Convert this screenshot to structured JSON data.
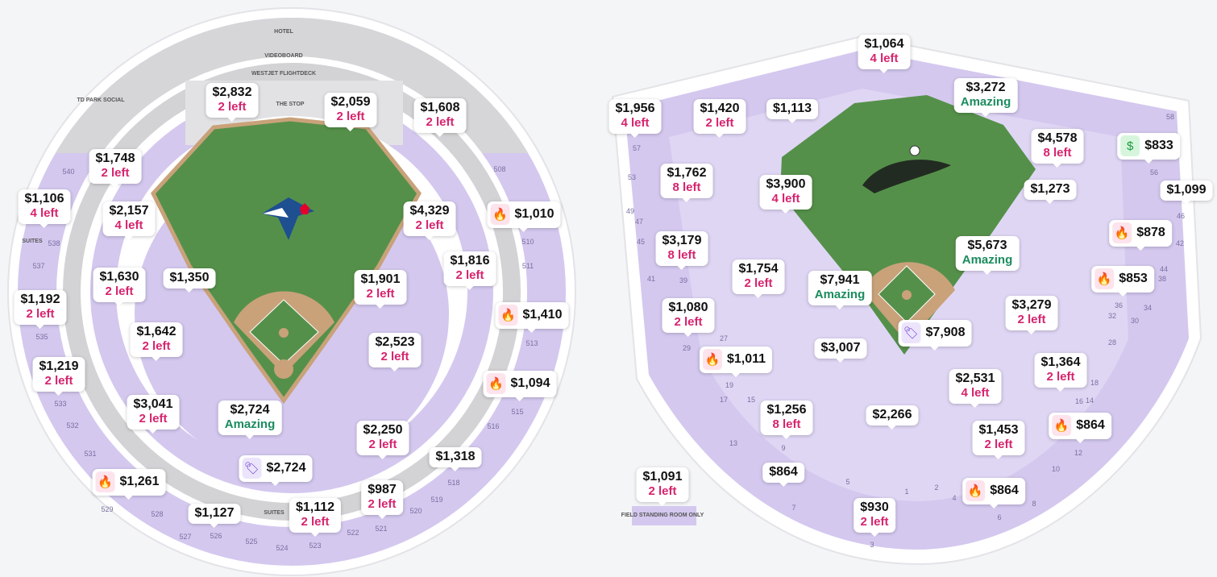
{
  "colors": {
    "section": "#d4c8ef",
    "field": "#55904a",
    "dirt": "#c9a27a",
    "left_text": "#d6246e",
    "amazing_text": "#1b8c5e"
  },
  "left_map": {
    "logo": "Toronto Blue Jays",
    "area_labels": [
      "HOTEL",
      "VIDEOBOARD",
      "WESTJET FLIGHTDECK",
      "THE STOP",
      "TD PARK SOCIAL",
      "SUITES",
      "SUITES"
    ],
    "sections": [
      "540",
      "538",
      "537",
      "535",
      "533",
      "532",
      "531",
      "529",
      "528",
      "527",
      "526",
      "525",
      "524",
      "523",
      "522",
      "521",
      "520",
      "519",
      "518",
      "516",
      "515",
      "513",
      "511",
      "510",
      "508"
    ],
    "listings": [
      {
        "price": "$2,832",
        "sub": "2 left",
        "type": "left"
      },
      {
        "price": "$2,059",
        "sub": "2 left",
        "type": "left"
      },
      {
        "price": "$1,608",
        "sub": "2 left",
        "type": "left"
      },
      {
        "price": "$1,748",
        "sub": "2 left",
        "type": "left"
      },
      {
        "price": "$1,106",
        "sub": "4 left",
        "type": "left"
      },
      {
        "price": "$2,157",
        "sub": "4 left",
        "type": "left"
      },
      {
        "price": "$4,329",
        "sub": "2 left",
        "type": "left"
      },
      {
        "price": "$1,010",
        "icon": "fire-icon"
      },
      {
        "price": "$1,630",
        "sub": "2 left",
        "type": "left"
      },
      {
        "price": "$1,350"
      },
      {
        "price": "$1,901",
        "sub": "2 left",
        "type": "left"
      },
      {
        "price": "$1,816",
        "sub": "2 left",
        "type": "left"
      },
      {
        "price": "$1,192",
        "sub": "2 left",
        "type": "left"
      },
      {
        "price": "$1,410",
        "icon": "fire-icon"
      },
      {
        "price": "$1,642",
        "sub": "2 left",
        "type": "left"
      },
      {
        "price": "$2,523",
        "sub": "2 left",
        "type": "left"
      },
      {
        "price": "$1,219",
        "sub": "2 left",
        "type": "left"
      },
      {
        "price": "$1,094",
        "icon": "fire-icon"
      },
      {
        "price": "$3,041",
        "sub": "2 left",
        "type": "left"
      },
      {
        "price": "$2,724",
        "sub": "Amazing",
        "type": "amazing"
      },
      {
        "price": "$2,250",
        "sub": "2 left",
        "type": "left"
      },
      {
        "price": "$2,724",
        "icon": "tag-icon"
      },
      {
        "price": "$1,318"
      },
      {
        "price": "$1,261",
        "icon": "fire-icon"
      },
      {
        "price": "$987",
        "sub": "2 left",
        "type": "left"
      },
      {
        "price": "$1,127"
      },
      {
        "price": "$1,112",
        "sub": "2 left",
        "type": "left"
      }
    ]
  },
  "right_map": {
    "logo": "Dodgers",
    "area_labels": [
      "FIELD STANDING ROOM ONLY"
    ],
    "sections": [
      "57",
      "53",
      "49",
      "47",
      "45",
      "41",
      "39",
      "29",
      "27",
      "19",
      "17",
      "15",
      "13",
      "9",
      "7",
      "5",
      "3",
      "1",
      "2",
      "4",
      "6",
      "8",
      "10",
      "12",
      "14",
      "16",
      "18",
      "56",
      "46",
      "42",
      "44",
      "38",
      "36",
      "34",
      "32",
      "30",
      "28",
      "58"
    ],
    "listings": [
      {
        "price": "$1,064",
        "sub": "4 left",
        "type": "left"
      },
      {
        "price": "$1,956",
        "sub": "4 left",
        "type": "left"
      },
      {
        "price": "$1,420",
        "sub": "2 left",
        "type": "left"
      },
      {
        "price": "$1,113"
      },
      {
        "price": "$3,272",
        "sub": "Amazing",
        "type": "amazing"
      },
      {
        "price": "$4,578",
        "sub": "8 left",
        "type": "left"
      },
      {
        "price": "$833",
        "icon": "price-drop-icon"
      },
      {
        "price": "$1,762",
        "sub": "8 left",
        "type": "left"
      },
      {
        "price": "$3,900",
        "sub": "4 left",
        "type": "left"
      },
      {
        "price": "$1,273"
      },
      {
        "price": "$1,099"
      },
      {
        "price": "$878",
        "icon": "fire-icon"
      },
      {
        "price": "$3,179",
        "sub": "8 left",
        "type": "left"
      },
      {
        "price": "$5,673",
        "sub": "Amazing",
        "type": "amazing"
      },
      {
        "price": "$1,754",
        "sub": "2 left",
        "type": "left"
      },
      {
        "price": "$853",
        "icon": "fire-icon"
      },
      {
        "price": "$7,941",
        "sub": "Amazing",
        "type": "amazing"
      },
      {
        "price": "$1,080",
        "sub": "2 left",
        "type": "left"
      },
      {
        "price": "$3,279",
        "sub": "2 left",
        "type": "left"
      },
      {
        "price": "$7,908",
        "icon": "tag-icon"
      },
      {
        "price": "$1,011",
        "icon": "fire-icon"
      },
      {
        "price": "$3,007"
      },
      {
        "price": "$1,364",
        "sub": "2 left",
        "type": "left"
      },
      {
        "price": "$2,531",
        "sub": "4 left",
        "type": "left"
      },
      {
        "price": "$1,256",
        "sub": "8 left",
        "type": "left"
      },
      {
        "price": "$864",
        "icon": "fire-icon"
      },
      {
        "price": "$2,266"
      },
      {
        "price": "$1,453",
        "sub": "2 left",
        "type": "left"
      },
      {
        "price": "$864"
      },
      {
        "price": "$864",
        "icon": "fire-icon"
      },
      {
        "price": "$930",
        "sub": "2 left",
        "type": "left"
      },
      {
        "price": "$1,091",
        "sub": "2 left",
        "type": "left"
      }
    ]
  }
}
